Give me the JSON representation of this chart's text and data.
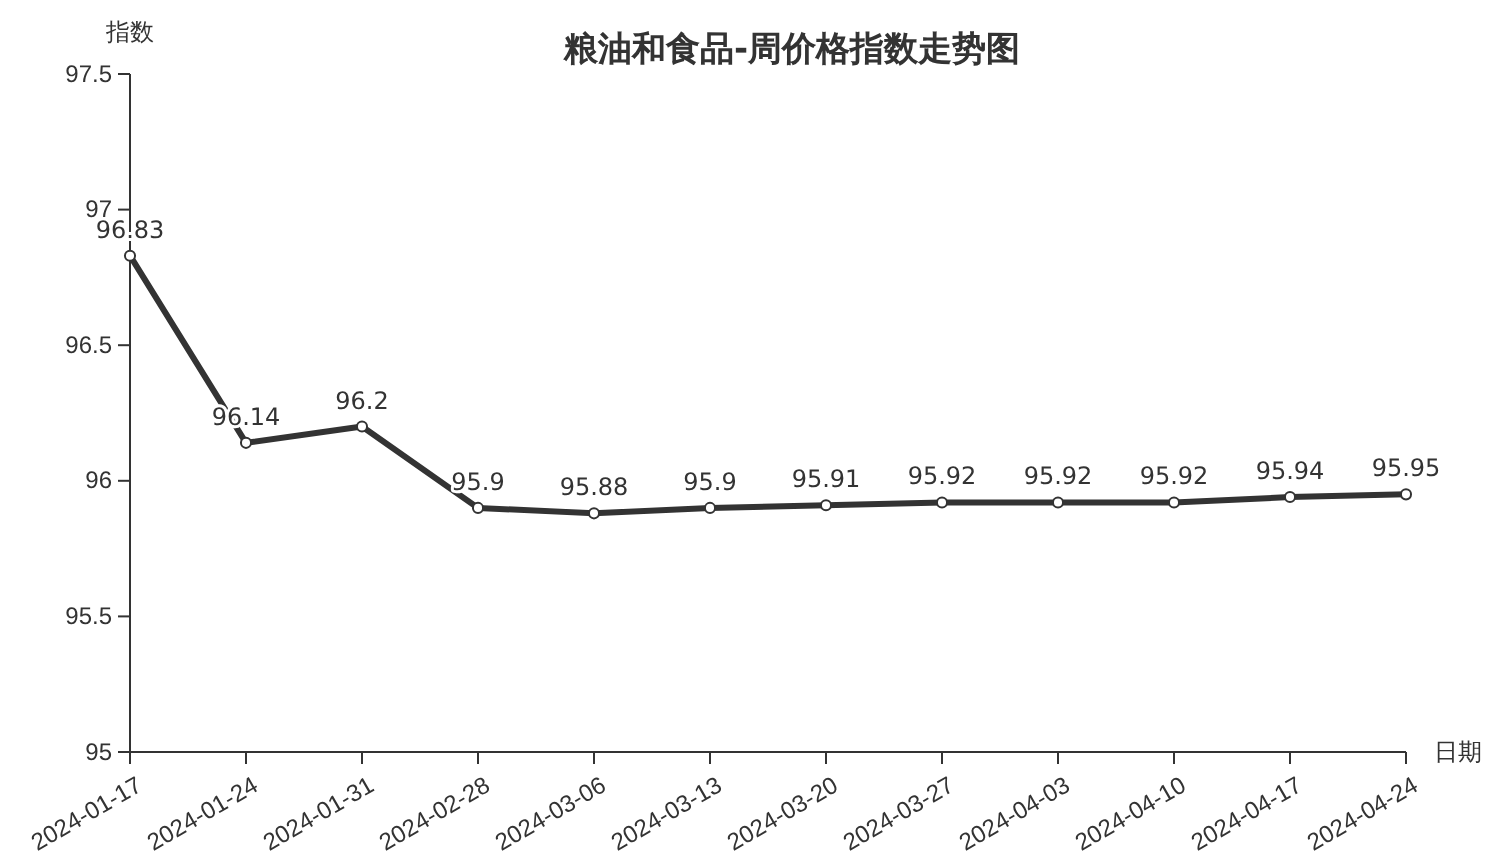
{
  "chart_data": {
    "type": "line",
    "title": "粮油和食品-周价格指数走势图",
    "ylabel": "指数",
    "xlabel": "日期",
    "categories": [
      "2024-01-17",
      "2024-01-24",
      "2024-01-31",
      "2024-02-28",
      "2024-03-06",
      "2024-03-13",
      "2024-03-20",
      "2024-03-27",
      "2024-04-03",
      "2024-04-10",
      "2024-04-17",
      "2024-04-24"
    ],
    "series": [
      {
        "color": "#333333",
        "values": [
          96.83,
          96.14,
          96.2,
          95.9,
          95.88,
          95.9,
          95.91,
          95.92,
          95.92,
          95.92,
          95.94,
          95.95
        ]
      }
    ],
    "ylim": [
      95,
      97.5
    ],
    "yticks": [
      95,
      95.5,
      96,
      96.5,
      97,
      97.5
    ],
    "grid": false,
    "marker": "circle",
    "line_style": "solid",
    "data_labels": true
  }
}
